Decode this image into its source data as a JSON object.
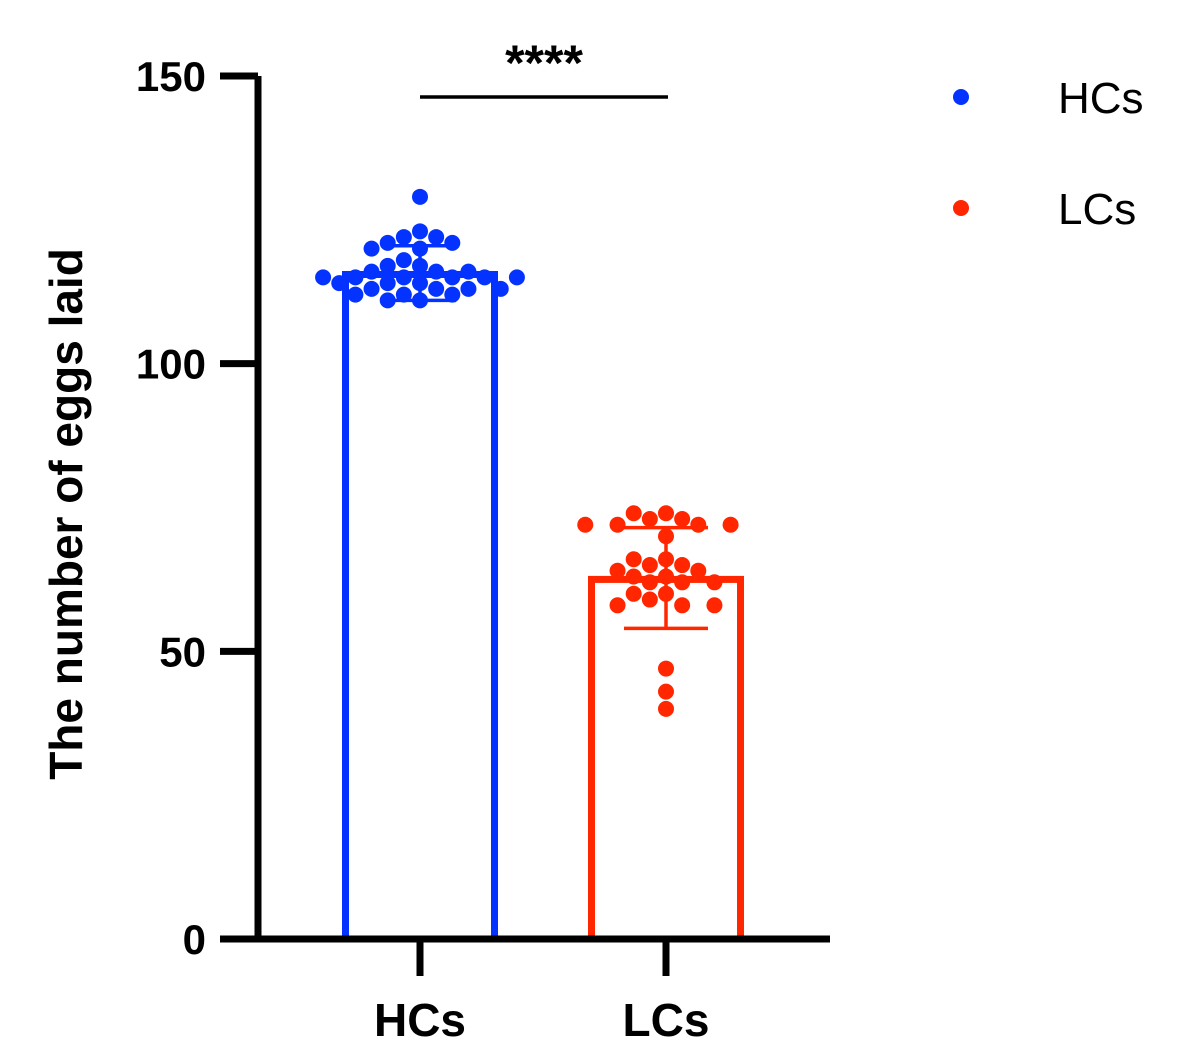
{
  "chart_data": {
    "type": "bar",
    "ylabel": "The number of eggs laid",
    "ylim": [
      0,
      150
    ],
    "yticks": [
      0,
      50,
      100,
      150
    ],
    "categories": [
      "HCs",
      "LCs"
    ],
    "series": [
      {
        "name": "HCs",
        "color": "#0433FF",
        "mean": 115.5,
        "error_low": 111,
        "error_high": 120.5,
        "points": [
          129,
          123,
          122,
          122,
          121,
          121,
          120,
          120,
          118,
          117,
          117,
          116,
          116,
          116,
          115,
          115,
          115,
          115,
          115,
          115,
          114,
          114,
          114,
          113,
          113,
          113,
          113,
          112,
          112,
          112,
          111,
          111
        ]
      },
      {
        "name": "LCs",
        "color": "#FF2600",
        "mean": 62.5,
        "error_low": 54,
        "error_high": 71.5,
        "points": [
          74,
          74,
          73,
          73,
          72,
          72,
          72,
          72,
          70,
          66,
          66,
          65,
          65,
          64,
          64,
          63,
          63,
          62,
          62,
          62,
          60,
          60,
          59,
          58,
          58,
          58,
          47,
          43,
          40
        ]
      }
    ],
    "significance": {
      "label": "****",
      "between": [
        "HCs",
        "LCs"
      ]
    },
    "legend": {
      "position": "top-right",
      "entries": [
        "HCs",
        "LCs"
      ]
    }
  }
}
